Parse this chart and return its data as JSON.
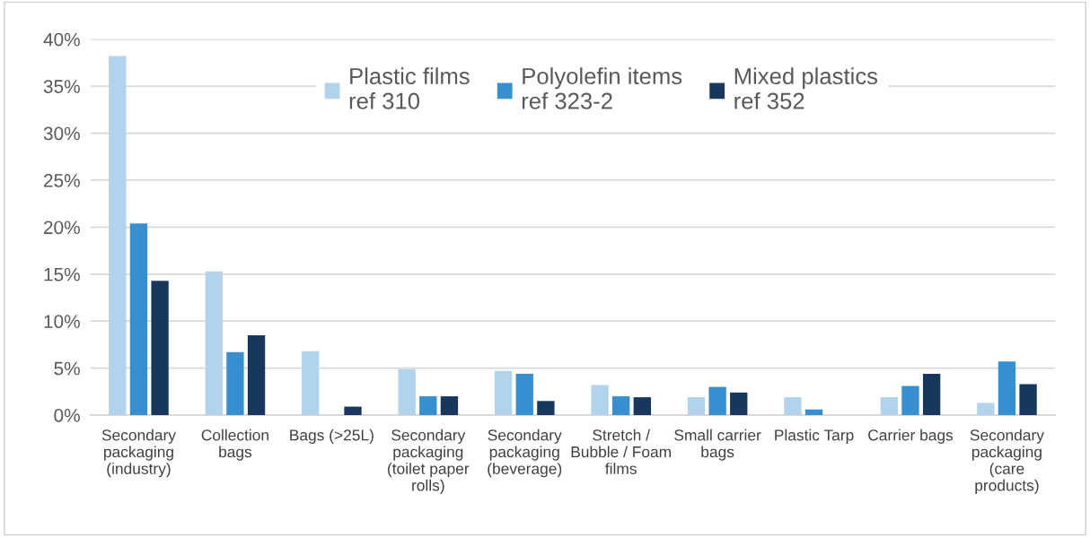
{
  "chart_data": {
    "type": "bar",
    "categories": [
      "Secondary packaging (industry)",
      "Collection bags",
      "Bags (>25L)",
      "Secondary packaging (toilet paper rolls)",
      "Secondary packaging (beverage)",
      "Stretch / Bubble / Foam films",
      "Small carrier bags",
      "Plastic Tarp",
      "Carrier bags",
      "Secondary packaging (care products)"
    ],
    "series": [
      {
        "name": "Plastic films\nref 310",
        "color": "#b2d3ec",
        "values": [
          38.2,
          15.3,
          6.8,
          4.9,
          4.7,
          3.2,
          1.9,
          1.9,
          1.9,
          1.3
        ]
      },
      {
        "name": "Polyolefin items\nref 323-2",
        "color": "#388fd0",
        "values": [
          20.4,
          6.7,
          null,
          2.0,
          4.4,
          2.0,
          3.0,
          0.6,
          3.1,
          5.7
        ]
      },
      {
        "name": "Mixed plastics\nref 352",
        "color": "#17375c",
        "values": [
          14.3,
          8.5,
          0.9,
          2.0,
          1.5,
          1.9,
          2.4,
          null,
          4.4,
          3.3
        ]
      }
    ],
    "ylim": [
      0,
      40
    ],
    "yticks": [
      {
        "value": 0,
        "label": "0%"
      },
      {
        "value": 5,
        "label": "5%"
      },
      {
        "value": 10,
        "label": "10%"
      },
      {
        "value": 15,
        "label": "15%"
      },
      {
        "value": 20,
        "label": "20%"
      },
      {
        "value": 25,
        "label": "25%"
      },
      {
        "value": 30,
        "label": "30%"
      },
      {
        "value": 35,
        "label": "35%"
      },
      {
        "value": 40,
        "label": "40%"
      }
    ],
    "grid": "y",
    "legend": "top"
  }
}
